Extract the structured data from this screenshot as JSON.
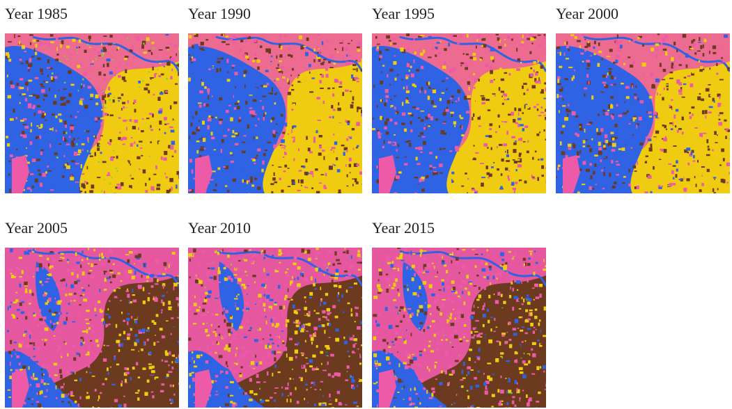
{
  "panels": [
    {
      "title": "Year 1985",
      "dominant": "yellow"
    },
    {
      "title": "Year 1990",
      "dominant": "yellow"
    },
    {
      "title": "Year 1995",
      "dominant": "yellow"
    },
    {
      "title": "Year 2000",
      "dominant": "yellow"
    },
    {
      "title": "Year 2005",
      "dominant": "brown"
    },
    {
      "title": "Year 2010",
      "dominant": "brown"
    },
    {
      "title": "Year 2015",
      "dominant": "brown"
    }
  ],
  "colors": {
    "water": "#2f63e3",
    "urban": "#ec5aa8",
    "agriculture": "#efcb12",
    "bare": "#6b3a1f",
    "vegetation": "#7fd13b"
  }
}
